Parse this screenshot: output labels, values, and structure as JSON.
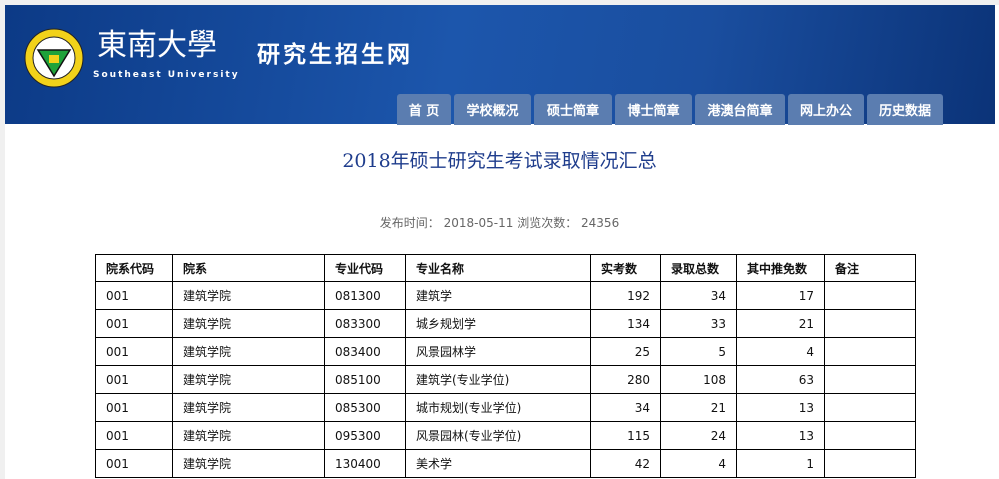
{
  "header": {
    "university_cn": "東南大學",
    "university_en": "Southeast University",
    "site_name": "研究生招生网",
    "nav": [
      "首 页",
      "学校概况",
      "硕士简章",
      "博士简章",
      "港澳台简章",
      "网上办公",
      "历史数据"
    ]
  },
  "article": {
    "title": "2018年硕士研究生考试录取情况汇总",
    "publish_label": "发布时间：",
    "publish_date": "2018-05-11",
    "views_label": "浏览次数：",
    "views": "24356"
  },
  "table": {
    "headers": [
      "院系代码",
      "院系",
      "专业代码",
      "专业名称",
      "实考数",
      "录取总数",
      "其中推免数",
      "备注"
    ],
    "rows": [
      [
        "001",
        "建筑学院",
        "081300",
        "建筑学",
        "192",
        "34",
        "17",
        ""
      ],
      [
        "001",
        "建筑学院",
        "083300",
        "城乡规划学",
        "134",
        "33",
        "21",
        ""
      ],
      [
        "001",
        "建筑学院",
        "083400",
        "风景园林学",
        "25",
        "5",
        "4",
        ""
      ],
      [
        "001",
        "建筑学院",
        "085100",
        "建筑学(专业学位)",
        "280",
        "108",
        "63",
        ""
      ],
      [
        "001",
        "建筑学院",
        "085300",
        "城市规划(专业学位)",
        "34",
        "21",
        "13",
        ""
      ],
      [
        "001",
        "建筑学院",
        "095300",
        "风景园林(专业学位)",
        "115",
        "24",
        "13",
        ""
      ],
      [
        "001",
        "建筑学院",
        "130400",
        "美术学",
        "42",
        "4",
        "1",
        ""
      ]
    ]
  }
}
